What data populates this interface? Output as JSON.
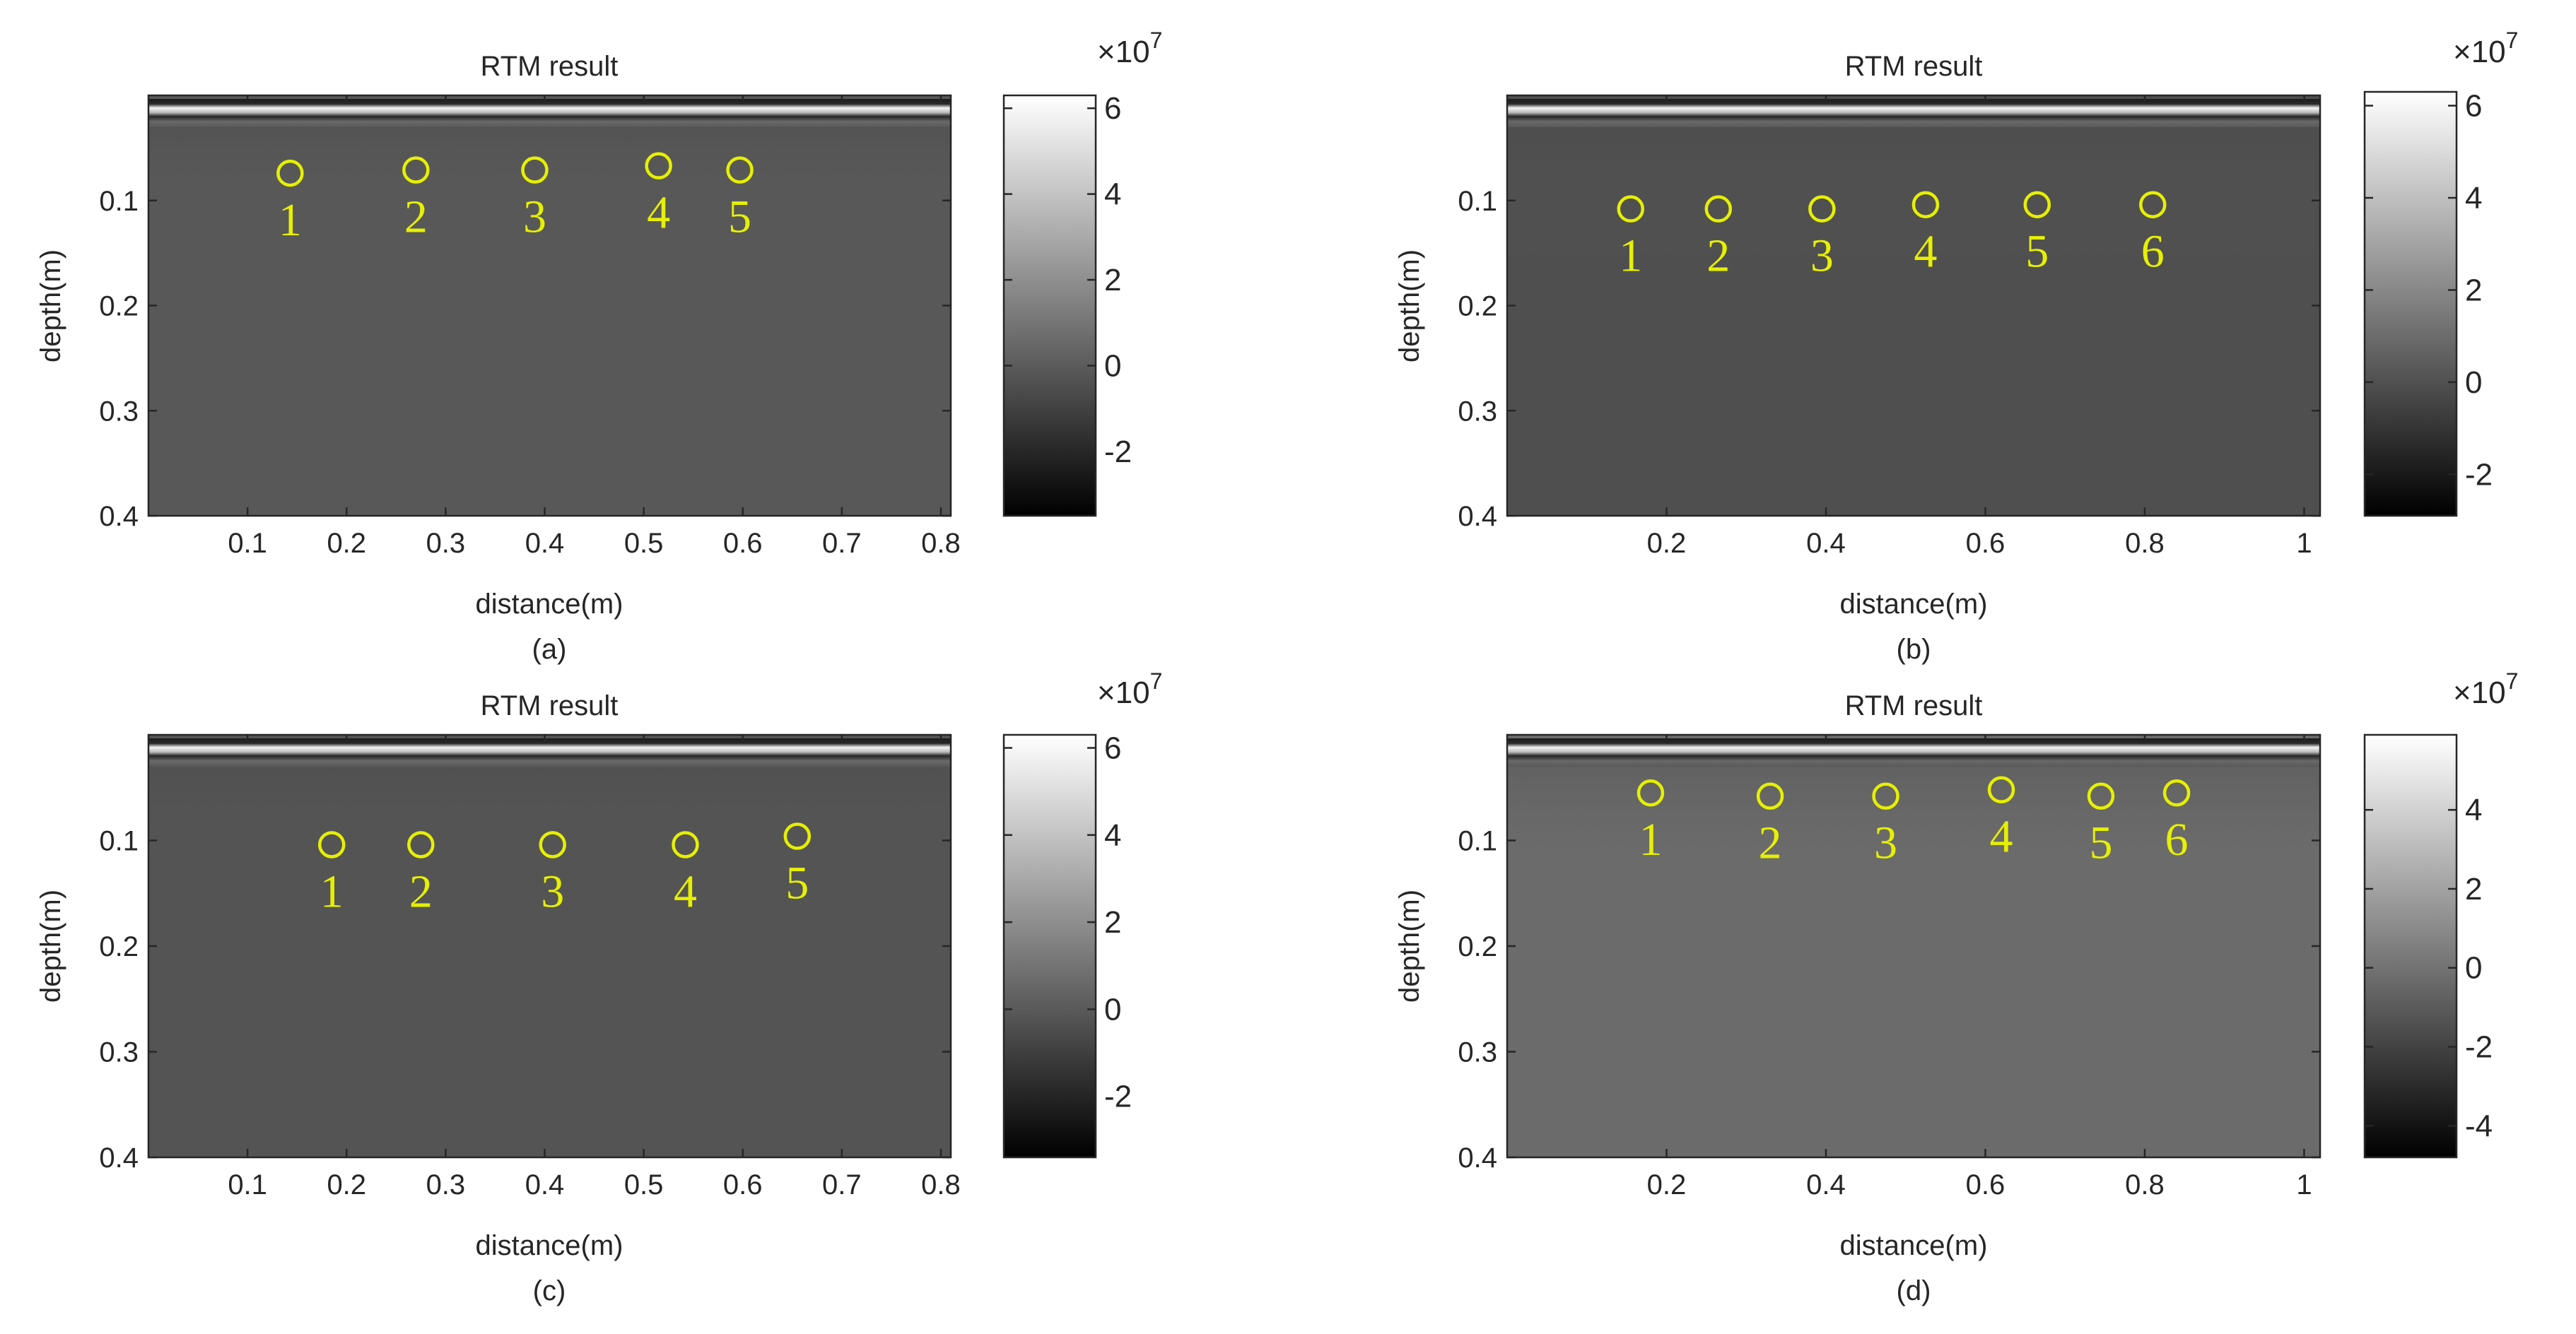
{
  "colors": {
    "marker": "#e6f000",
    "axis": "#262626",
    "background": "#ffffff"
  },
  "chart_data": [
    {
      "type": "heatmap",
      "title": "RTM result",
      "xlabel": "distance(m)",
      "ylabel": "depth(m)",
      "caption": "(a)",
      "xlim": [
        0,
        0.81
      ],
      "ylim": [
        0,
        0.4
      ],
      "y_reversed": true,
      "xticks": [
        0.1,
        0.2,
        0.3,
        0.4,
        0.5,
        0.6,
        0.7,
        0.8
      ],
      "xtick_labels": [
        "0.1",
        "0.2",
        "0.3",
        "0.4",
        "0.5",
        "0.6",
        "0.7",
        "0.8"
      ],
      "yticks": [
        0.1,
        0.2,
        0.3,
        0.4
      ],
      "ytick_labels": [
        "0.1",
        "0.2",
        "0.3",
        "0.4"
      ],
      "colormap": "gray",
      "colorbar": {
        "range": [
          -3.5,
          6.3
        ],
        "ticks": [
          -2,
          0,
          2,
          4,
          6
        ],
        "tick_labels": [
          "-2",
          "0",
          "2",
          "4",
          "6"
        ],
        "exponent_base": "×10",
        "exponent": "7"
      },
      "markers": [
        {
          "label": "1",
          "x": 0.143,
          "y": 0.074
        },
        {
          "label": "2",
          "x": 0.27,
          "y": 0.071
        },
        {
          "label": "3",
          "x": 0.39,
          "y": 0.071
        },
        {
          "label": "4",
          "x": 0.515,
          "y": 0.067
        },
        {
          "label": "5",
          "x": 0.597,
          "y": 0.071
        }
      ]
    },
    {
      "type": "heatmap",
      "title": "RTM result",
      "xlabel": "distance(m)",
      "ylabel": "depth(m)",
      "caption": "(b)",
      "xlim": [
        0,
        1.02
      ],
      "ylim": [
        0,
        0.4
      ],
      "y_reversed": true,
      "xticks": [
        0.2,
        0.4,
        0.6,
        0.8,
        1
      ],
      "xtick_labels": [
        "0.2",
        "0.4",
        "0.6",
        "0.8",
        "1"
      ],
      "yticks": [
        0.1,
        0.2,
        0.3,
        0.4
      ],
      "ytick_labels": [
        "0.1",
        "0.2",
        "0.3",
        "0.4"
      ],
      "colormap": "gray",
      "colorbar": {
        "range": [
          -2.9,
          6.3
        ],
        "ticks": [
          -2,
          0,
          2,
          4,
          6
        ],
        "tick_labels": [
          "-2",
          "0",
          "2",
          "4",
          "6"
        ],
        "exponent_base": "×10",
        "exponent": "7"
      },
      "markers": [
        {
          "label": "1",
          "x": 0.155,
          "y": 0.108
        },
        {
          "label": "2",
          "x": 0.265,
          "y": 0.108
        },
        {
          "label": "3",
          "x": 0.395,
          "y": 0.108
        },
        {
          "label": "4",
          "x": 0.525,
          "y": 0.104
        },
        {
          "label": "5",
          "x": 0.665,
          "y": 0.104
        },
        {
          "label": "6",
          "x": 0.81,
          "y": 0.104
        }
      ]
    },
    {
      "type": "heatmap",
      "title": "RTM result",
      "xlabel": "distance(m)",
      "ylabel": "depth(m)",
      "caption": "(c)",
      "xlim": [
        0,
        0.81
      ],
      "ylim": [
        0,
        0.4
      ],
      "y_reversed": true,
      "xticks": [
        0.1,
        0.2,
        0.3,
        0.4,
        0.5,
        0.6,
        0.7,
        0.8
      ],
      "xtick_labels": [
        "0.1",
        "0.2",
        "0.3",
        "0.4",
        "0.5",
        "0.6",
        "0.7",
        "0.8"
      ],
      "yticks": [
        0.1,
        0.2,
        0.3,
        0.4
      ],
      "ytick_labels": [
        "0.1",
        "0.2",
        "0.3",
        "0.4"
      ],
      "colormap": "gray",
      "colorbar": {
        "range": [
          -3.4,
          6.3
        ],
        "ticks": [
          -2,
          0,
          2,
          4,
          6
        ],
        "tick_labels": [
          "-2",
          "0",
          "2",
          "4",
          "6"
        ],
        "exponent_base": "×10",
        "exponent": "7"
      },
      "markers": [
        {
          "label": "1",
          "x": 0.185,
          "y": 0.104
        },
        {
          "label": "2",
          "x": 0.275,
          "y": 0.104
        },
        {
          "label": "3",
          "x": 0.408,
          "y": 0.104
        },
        {
          "label": "4",
          "x": 0.542,
          "y": 0.104
        },
        {
          "label": "5",
          "x": 0.655,
          "y": 0.096
        }
      ]
    },
    {
      "type": "heatmap",
      "title": "RTM result",
      "xlabel": "distance(m)",
      "ylabel": "depth(m)",
      "caption": "(d)",
      "xlim": [
        0,
        1.02
      ],
      "ylim": [
        0,
        0.4
      ],
      "y_reversed": true,
      "xticks": [
        0.2,
        0.4,
        0.6,
        0.8,
        1
      ],
      "xtick_labels": [
        "0.2",
        "0.4",
        "0.6",
        "0.8",
        "1"
      ],
      "yticks": [
        0.1,
        0.2,
        0.3,
        0.4
      ],
      "ytick_labels": [
        "0.1",
        "0.2",
        "0.3",
        "0.4"
      ],
      "colormap": "gray",
      "colorbar": {
        "range": [
          -4.8,
          5.9
        ],
        "ticks": [
          -4,
          -2,
          0,
          2,
          4
        ],
        "tick_labels": [
          "-4",
          "-2",
          "0",
          "2",
          "4"
        ],
        "exponent_base": "×10",
        "exponent": "7"
      },
      "markers": [
        {
          "label": "1",
          "x": 0.18,
          "y": 0.055
        },
        {
          "label": "2",
          "x": 0.33,
          "y": 0.058
        },
        {
          "label": "3",
          "x": 0.475,
          "y": 0.058
        },
        {
          "label": "4",
          "x": 0.62,
          "y": 0.052
        },
        {
          "label": "5",
          "x": 0.745,
          "y": 0.058
        },
        {
          "label": "6",
          "x": 0.84,
          "y": 0.055
        }
      ]
    }
  ]
}
